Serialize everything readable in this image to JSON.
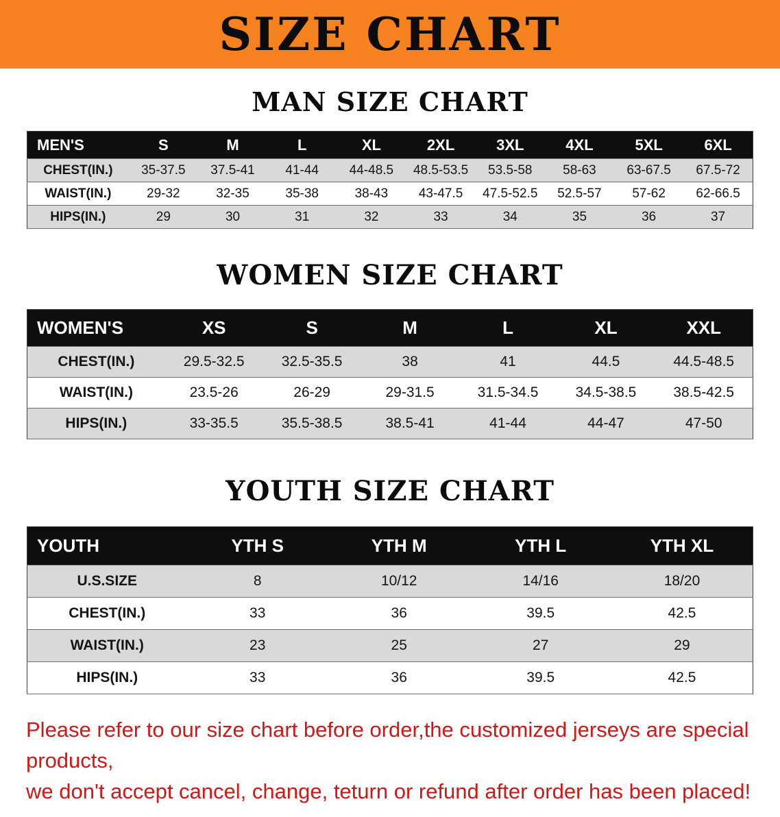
{
  "banner": {
    "title": "SIZE CHART"
  },
  "colors": {
    "banner_bg": "#f5821f",
    "header_bg": "#0e0e0e",
    "stripe": "#d9d9d9",
    "notice": "#d31616"
  },
  "sections": [
    {
      "heading": "MAN SIZE CHART",
      "table": {
        "header": [
          "MEN'S",
          "S",
          "M",
          "L",
          "XL",
          "2XL",
          "3XL",
          "4XL",
          "5XL",
          "6XL"
        ],
        "rows": [
          [
            "CHEST(IN.)",
            "35-37.5",
            "37.5-41",
            "41-44",
            "44-48.5",
            "48.5-53.5",
            "53.5-58",
            "58-63",
            "63-67.5",
            "67.5-72"
          ],
          [
            "WAIST(IN.)",
            "29-32",
            "32-35",
            "35-38",
            "38-43",
            "43-47.5",
            "47.5-52.5",
            "52.5-57",
            "57-62",
            "62-66.5"
          ],
          [
            "HIPS(IN.)",
            "29",
            "30",
            "31",
            "32",
            "33",
            "34",
            "35",
            "36",
            "37"
          ]
        ]
      }
    },
    {
      "heading": "WOMEN SIZE CHART",
      "table": {
        "header": [
          "WOMEN'S",
          "XS",
          "S",
          "M",
          "L",
          "XL",
          "XXL"
        ],
        "rows": [
          [
            "CHEST(IN.)",
            "29.5-32.5",
            "32.5-35.5",
            "38",
            "41",
            "44.5",
            "44.5-48.5"
          ],
          [
            "WAIST(IN.)",
            "23.5-26",
            "26-29",
            "29-31.5",
            "31.5-34.5",
            "34.5-38.5",
            "38.5-42.5"
          ],
          [
            "HIPS(IN.)",
            "33-35.5",
            "35.5-38.5",
            "38.5-41",
            "41-44",
            "44-47",
            "47-50"
          ]
        ]
      }
    },
    {
      "heading": "YOUTH SIZE CHART",
      "table": {
        "header": [
          "YOUTH",
          "YTH S",
          "YTH M",
          "YTH L",
          "YTH XL"
        ],
        "rows": [
          [
            "U.S.SIZE",
            "8",
            "10/12",
            "14/16",
            "18/20"
          ],
          [
            "CHEST(IN.)",
            "33",
            "36",
            "39.5",
            "42.5"
          ],
          [
            "WAIST(IN.)",
            "23",
            "25",
            "27",
            "29"
          ],
          [
            "HIPS(IN.)",
            "33",
            "36",
            "39.5",
            "42.5"
          ]
        ]
      }
    }
  ],
  "notice": {
    "line1": "Please refer to our size chart before order,the customized jerseys are special products,",
    "line2": "we don't accept cancel, change, teturn or refund after order has been placed!"
  }
}
